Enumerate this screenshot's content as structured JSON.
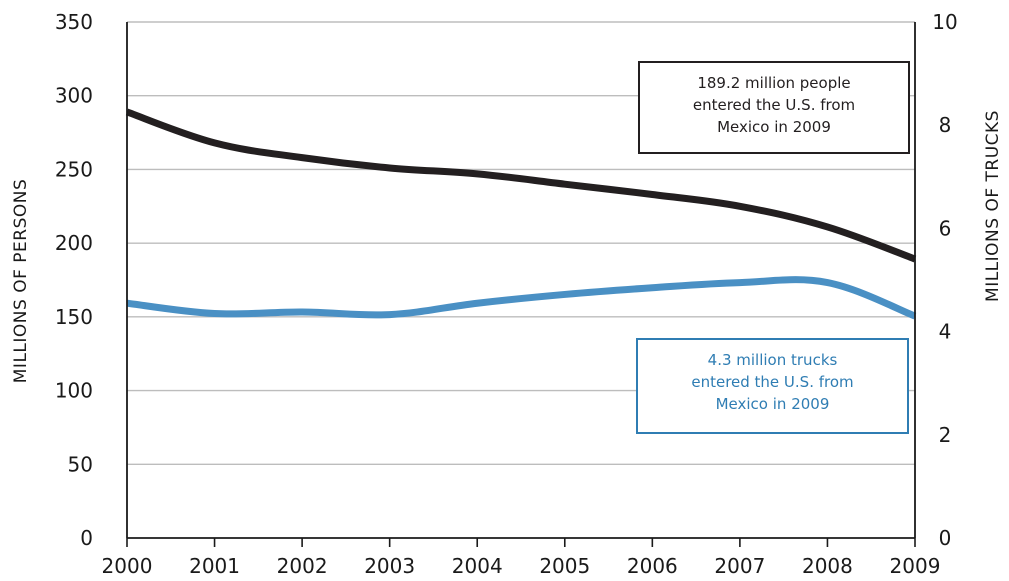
{
  "chart_data": {
    "type": "line",
    "title": "",
    "xlabel": "",
    "x": [
      2000,
      2001,
      2002,
      2003,
      2004,
      2005,
      2006,
      2007,
      2008,
      2009
    ],
    "x_ticks": [
      "2000",
      "2001",
      "2002",
      "2003",
      "2004",
      "2005",
      "2006",
      "2007",
      "2008",
      "2009"
    ],
    "y_left": {
      "label": "MILLIONS OF PERSONS",
      "ylim": [
        0,
        350
      ],
      "ticks": [
        "0",
        "50",
        "100",
        "150",
        "200",
        "250",
        "300",
        "350"
      ]
    },
    "y_right": {
      "label": "MILLIONS OF TRUCKS",
      "ylim": [
        0,
        10
      ],
      "ticks": [
        "0",
        "2",
        "4",
        "6",
        "8",
        "10"
      ]
    },
    "grid": "horizontal",
    "series": [
      {
        "axis": "left",
        "color": "#231f20",
        "values": [
          289,
          268,
          258,
          251,
          247,
          240,
          233,
          225,
          211,
          189.2
        ]
      },
      {
        "axis": "right",
        "color": "#4a90c4",
        "values": [
          4.55,
          4.35,
          4.38,
          4.33,
          4.55,
          4.72,
          4.85,
          4.95,
          4.95,
          4.3
        ]
      }
    ],
    "annotations": [
      {
        "series": 0,
        "lines": [
          "189.2 million people",
          "entered the U.S. from",
          "Mexico in 2009"
        ]
      },
      {
        "series": 1,
        "lines": [
          "4.3 million trucks",
          "entered the U.S. from",
          "Mexico in 2009"
        ]
      }
    ]
  }
}
